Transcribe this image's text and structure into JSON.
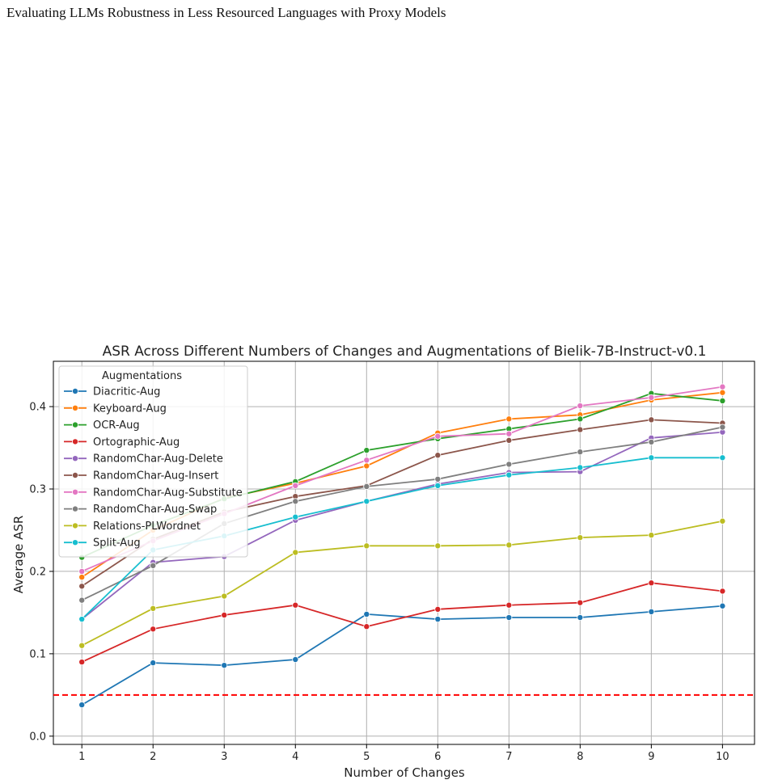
{
  "header": {
    "text": "Evaluating LLMs Robustness in Less Resourced Languages with Proxy Models"
  },
  "chart_data": {
    "type": "line",
    "title": "ASR Across Different Numbers of Changes and Augmentations of Bielik-7B-Instruct-v0.1",
    "xlabel": "Number of Changes",
    "ylabel": "Average ASR",
    "x": [
      1,
      2,
      3,
      4,
      5,
      6,
      7,
      8,
      9,
      10
    ],
    "xlim": [
      0.6,
      10.45
    ],
    "ylim": [
      -0.01,
      0.455
    ],
    "yticks": [
      0.0,
      0.1,
      0.2,
      0.3,
      0.4
    ],
    "ytick_labels": [
      "0.0",
      "0.1",
      "0.2",
      "0.3",
      "0.4"
    ],
    "grid": true,
    "legend_title": "Augmentations",
    "legend_position": "upper-left",
    "reference_line": {
      "y": 0.05,
      "color": "#ff0000",
      "style": "dashed"
    },
    "series": [
      {
        "name": "Diacritic-Aug",
        "color": "#1f77b4",
        "values": [
          0.038,
          0.089,
          0.086,
          0.093,
          0.148,
          0.142,
          0.144,
          0.144,
          0.151,
          0.158
        ]
      },
      {
        "name": "Keyboard-Aug",
        "color": "#ff7f0e",
        "values": [
          0.193,
          0.25,
          0.289,
          0.307,
          0.328,
          0.368,
          0.385,
          0.39,
          0.408,
          0.417
        ]
      },
      {
        "name": "OCR-Aug",
        "color": "#2ca02c",
        "values": [
          0.217,
          0.256,
          0.288,
          0.309,
          0.347,
          0.361,
          0.373,
          0.385,
          0.416,
          0.407
        ]
      },
      {
        "name": "Ortographic-Aug",
        "color": "#d62728",
        "values": [
          0.09,
          0.13,
          0.147,
          0.159,
          0.133,
          0.154,
          0.159,
          0.162,
          0.186,
          0.176
        ]
      },
      {
        "name": "RandomChar-Aug-Delete",
        "color": "#9467bd",
        "values": [
          0.142,
          0.211,
          0.218,
          0.262,
          0.285,
          0.306,
          0.32,
          0.321,
          0.362,
          0.369
        ]
      },
      {
        "name": "RandomChar-Aug-Insert",
        "color": "#8c564b",
        "values": [
          0.182,
          0.239,
          0.272,
          0.291,
          0.304,
          0.341,
          0.359,
          0.372,
          0.384,
          0.38
        ]
      },
      {
        "name": "RandomChar-Aug-Substitute",
        "color": "#e377c2",
        "values": [
          0.2,
          0.237,
          0.27,
          0.304,
          0.335,
          0.364,
          0.367,
          0.401,
          0.411,
          0.424
        ]
      },
      {
        "name": "RandomChar-Aug-Swap",
        "color": "#7f7f7f",
        "values": [
          0.165,
          0.207,
          0.258,
          0.285,
          0.303,
          0.312,
          0.33,
          0.345,
          0.357,
          0.375
        ]
      },
      {
        "name": "Relations-PLWordnet",
        "color": "#bcbd22",
        "values": [
          0.11,
          0.155,
          0.17,
          0.223,
          0.231,
          0.231,
          0.232,
          0.241,
          0.244,
          0.261
        ]
      },
      {
        "name": "Split-Aug",
        "color": "#17becf",
        "values": [
          0.142,
          0.226,
          0.243,
          0.266,
          0.285,
          0.304,
          0.317,
          0.326,
          0.338,
          0.338
        ]
      }
    ]
  }
}
